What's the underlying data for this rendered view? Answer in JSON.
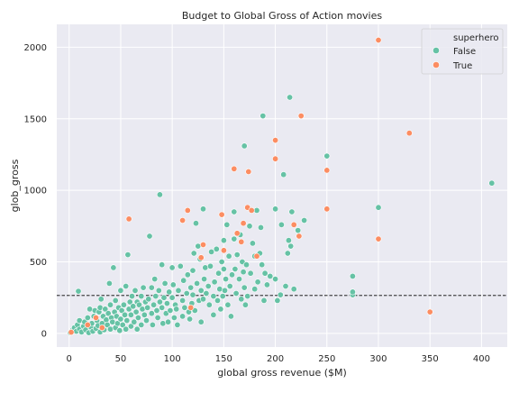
{
  "chart_data": {
    "type": "scatter",
    "title": "Budget to Global Gross of Action movies",
    "xlabel": "global gross revenue ($M)",
    "ylabel": "glob_gross",
    "xlim": [
      -12,
      425
    ],
    "ylim": [
      -95,
      2160
    ],
    "xticks": [
      0,
      50,
      100,
      150,
      200,
      250,
      300,
      350,
      400
    ],
    "yticks": [
      0,
      500,
      1000,
      1500,
      2000
    ],
    "grid": true,
    "background": "#eaeaf2",
    "reference_line": {
      "y": 265,
      "style": "dashed",
      "color": "#000000"
    },
    "legend": {
      "title": "superhero",
      "placement": "top-right",
      "entries": [
        {
          "label": "False",
          "color": "#66c2a5"
        },
        {
          "label": "True",
          "color": "#fc8d62"
        }
      ]
    },
    "series": [
      {
        "name": "False",
        "color": "#66c2a5",
        "points": [
          [
            1,
            5
          ],
          [
            3,
            20
          ],
          [
            5,
            40
          ],
          [
            7,
            15
          ],
          [
            8,
            60
          ],
          [
            10,
            30
          ],
          [
            10,
            90
          ],
          [
            9,
            295
          ],
          [
            12,
            10
          ],
          [
            14,
            50
          ],
          [
            15,
            80
          ],
          [
            16,
            25
          ],
          [
            18,
            110
          ],
          [
            19,
            5
          ],
          [
            20,
            170
          ],
          [
            21,
            45
          ],
          [
            22,
            70
          ],
          [
            23,
            15
          ],
          [
            24,
            120
          ],
          [
            25,
            160
          ],
          [
            26,
            35
          ],
          [
            27,
            90
          ],
          [
            28,
            55
          ],
          [
            29,
            150
          ],
          [
            30,
            10
          ],
          [
            30,
            180
          ],
          [
            31,
            240
          ],
          [
            32,
            70
          ],
          [
            33,
            120
          ],
          [
            34,
            25
          ],
          [
            35,
            170
          ],
          [
            36,
            95
          ],
          [
            37,
            60
          ],
          [
            38,
            140
          ],
          [
            39,
            350
          ],
          [
            40,
            30
          ],
          [
            40,
            200
          ],
          [
            41,
            110
          ],
          [
            42,
            80
          ],
          [
            43,
            460
          ],
          [
            44,
            150
          ],
          [
            45,
            40
          ],
          [
            45,
            230
          ],
          [
            46,
            120
          ],
          [
            47,
            70
          ],
          [
            48,
            180
          ],
          [
            49,
            20
          ],
          [
            50,
            100
          ],
          [
            50,
            300
          ],
          [
            51,
            160
          ],
          [
            52,
            60
          ],
          [
            53,
            200
          ],
          [
            54,
            130
          ],
          [
            55,
            330
          ],
          [
            55,
            30
          ],
          [
            56,
            90
          ],
          [
            57,
            550
          ],
          [
            58,
            170
          ],
          [
            59,
            220
          ],
          [
            60,
            50
          ],
          [
            60,
            130
          ],
          [
            61,
            260
          ],
          [
            62,
            190
          ],
          [
            63,
            80
          ],
          [
            64,
            300
          ],
          [
            65,
            150
          ],
          [
            66,
            30
          ],
          [
            66,
            220
          ],
          [
            67,
            110
          ],
          [
            68,
            200
          ],
          [
            70,
            60
          ],
          [
            70,
            260
          ],
          [
            71,
            170
          ],
          [
            72,
            320
          ],
          [
            73,
            130
          ],
          [
            74,
            220
          ],
          [
            75,
            90
          ],
          [
            76,
            180
          ],
          [
            77,
            240
          ],
          [
            78,
            680
          ],
          [
            80,
            140
          ],
          [
            80,
            320
          ],
          [
            81,
            60
          ],
          [
            82,
            200
          ],
          [
            83,
            380
          ],
          [
            84,
            260
          ],
          [
            85,
            160
          ],
          [
            86,
            110
          ],
          [
            87,
            300
          ],
          [
            88,
            220
          ],
          [
            88,
            970
          ],
          [
            90,
            180
          ],
          [
            90,
            480
          ],
          [
            91,
            70
          ],
          [
            92,
            250
          ],
          [
            93,
            350
          ],
          [
            94,
            140
          ],
          [
            95,
            210
          ],
          [
            96,
            80
          ],
          [
            97,
            290
          ],
          [
            98,
            160
          ],
          [
            100,
            460
          ],
          [
            100,
            250
          ],
          [
            101,
            340
          ],
          [
            102,
            110
          ],
          [
            103,
            200
          ],
          [
            104,
            170
          ],
          [
            105,
            60
          ],
          [
            106,
            300
          ],
          [
            108,
            470
          ],
          [
            110,
            230
          ],
          [
            110,
            120
          ],
          [
            111,
            370
          ],
          [
            112,
            180
          ],
          [
            114,
            280
          ],
          [
            115,
            410
          ],
          [
            116,
            150
          ],
          [
            117,
            100
          ],
          [
            118,
            320
          ],
          [
            119,
            210
          ],
          [
            120,
            440
          ],
          [
            120,
            270
          ],
          [
            121,
            560
          ],
          [
            122,
            160
          ],
          [
            123,
            770
          ],
          [
            124,
            350
          ],
          [
            125,
            610
          ],
          [
            126,
            230
          ],
          [
            127,
            520
          ],
          [
            128,
            300
          ],
          [
            128,
            80
          ],
          [
            130,
            870
          ],
          [
            130,
            240
          ],
          [
            131,
            380
          ],
          [
            132,
            460
          ],
          [
            133,
            280
          ],
          [
            135,
            330
          ],
          [
            136,
            200
          ],
          [
            137,
            470
          ],
          [
            138,
            570
          ],
          [
            140,
            260
          ],
          [
            140,
            130
          ],
          [
            141,
            360
          ],
          [
            143,
            590
          ],
          [
            144,
            230
          ],
          [
            145,
            420
          ],
          [
            146,
            310
          ],
          [
            147,
            170
          ],
          [
            148,
            500
          ],
          [
            149,
            260
          ],
          [
            150,
            650
          ],
          [
            150,
            450
          ],
          [
            151,
            300
          ],
          [
            152,
            380
          ],
          [
            153,
            760
          ],
          [
            154,
            200
          ],
          [
            155,
            540
          ],
          [
            156,
            330
          ],
          [
            157,
            120
          ],
          [
            158,
            410
          ],
          [
            160,
            660
          ],
          [
            160,
            850
          ],
          [
            161,
            450
          ],
          [
            162,
            280
          ],
          [
            163,
            550
          ],
          [
            165,
            380
          ],
          [
            166,
            690
          ],
          [
            167,
            240
          ],
          [
            168,
            500
          ],
          [
            169,
            430
          ],
          [
            170,
            1310
          ],
          [
            170,
            320
          ],
          [
            171,
            200
          ],
          [
            172,
            480
          ],
          [
            173,
            260
          ],
          [
            175,
            750
          ],
          [
            176,
            420
          ],
          [
            178,
            630
          ],
          [
            180,
            540
          ],
          [
            180,
            310
          ],
          [
            182,
            860
          ],
          [
            183,
            360
          ],
          [
            185,
            560
          ],
          [
            186,
            740
          ],
          [
            187,
            480
          ],
          [
            188,
            1520
          ],
          [
            189,
            230
          ],
          [
            190,
            420
          ],
          [
            192,
            340
          ],
          [
            195,
            400
          ],
          [
            200,
            380
          ],
          [
            200,
            870
          ],
          [
            202,
            230
          ],
          [
            205,
            270
          ],
          [
            206,
            760
          ],
          [
            208,
            1110
          ],
          [
            210,
            330
          ],
          [
            212,
            560
          ],
          [
            213,
            650
          ],
          [
            214,
            1650
          ],
          [
            215,
            610
          ],
          [
            216,
            850
          ],
          [
            218,
            310
          ],
          [
            222,
            720
          ],
          [
            228,
            790
          ],
          [
            250,
            1240
          ],
          [
            275,
            400
          ],
          [
            275,
            270
          ],
          [
            275,
            290
          ],
          [
            300,
            880
          ],
          [
            410,
            1050
          ]
        ]
      },
      {
        "name": "True",
        "color": "#fc8d62",
        "points": [
          [
            2,
            8
          ],
          [
            18,
            60
          ],
          [
            26,
            110
          ],
          [
            32,
            40
          ],
          [
            58,
            800
          ],
          [
            110,
            790
          ],
          [
            115,
            860
          ],
          [
            118,
            180
          ],
          [
            128,
            530
          ],
          [
            130,
            620
          ],
          [
            148,
            830
          ],
          [
            150,
            580
          ],
          [
            160,
            1150
          ],
          [
            163,
            700
          ],
          [
            167,
            640
          ],
          [
            169,
            770
          ],
          [
            173,
            880
          ],
          [
            174,
            1130
          ],
          [
            177,
            860
          ],
          [
            182,
            540
          ],
          [
            200,
            1350
          ],
          [
            200,
            1220
          ],
          [
            218,
            760
          ],
          [
            223,
            680
          ],
          [
            225,
            1520
          ],
          [
            250,
            1140
          ],
          [
            250,
            870
          ],
          [
            300,
            2050
          ],
          [
            300,
            660
          ],
          [
            330,
            1400
          ],
          [
            350,
            150
          ]
        ]
      }
    ]
  }
}
